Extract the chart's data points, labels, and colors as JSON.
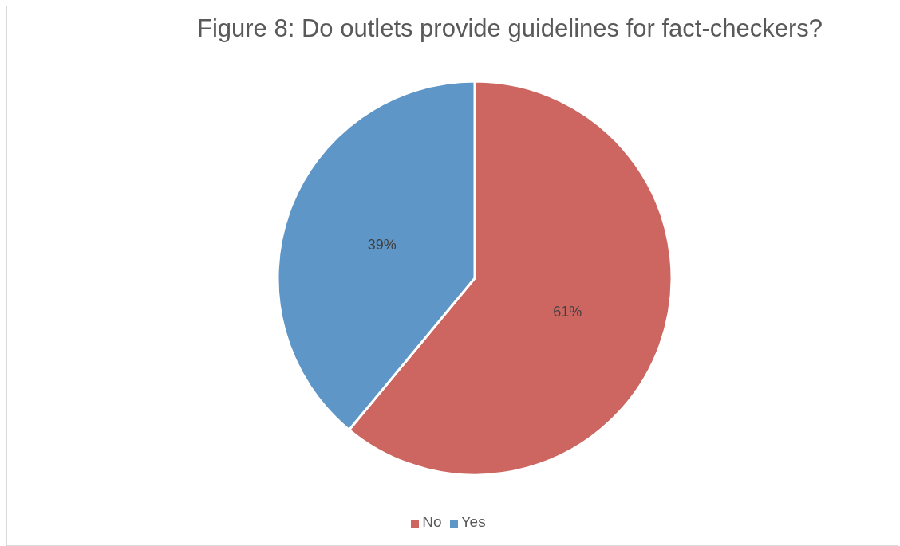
{
  "chart_data": {
    "type": "pie",
    "title": "Figure 8: Do outlets provide guidelines for fact-checkers?",
    "categories": [
      "No",
      "Yes"
    ],
    "values": [
      61,
      39
    ],
    "colors": [
      "#cd6660",
      "#5f96c8"
    ],
    "value_labels": [
      "61%",
      "39%"
    ],
    "legend": "bottom"
  }
}
